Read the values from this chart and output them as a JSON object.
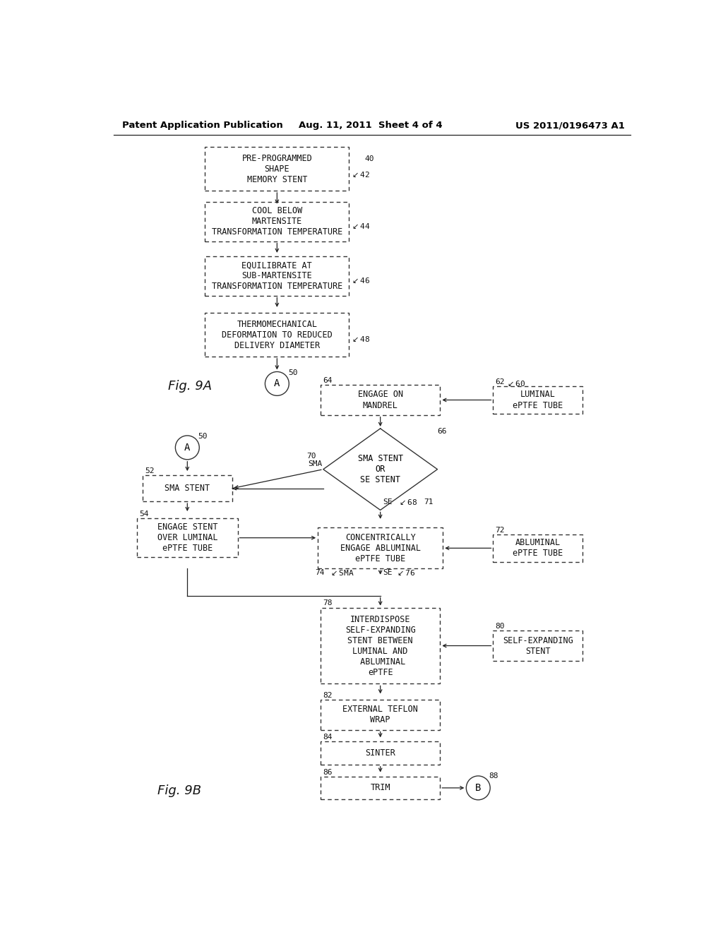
{
  "header_left": "Patent Application Publication",
  "header_mid": "Aug. 11, 2011  Sheet 4 of 4",
  "header_right": "US 2011/0196473 A1",
  "background": "#ffffff",
  "text_color": "#000000"
}
